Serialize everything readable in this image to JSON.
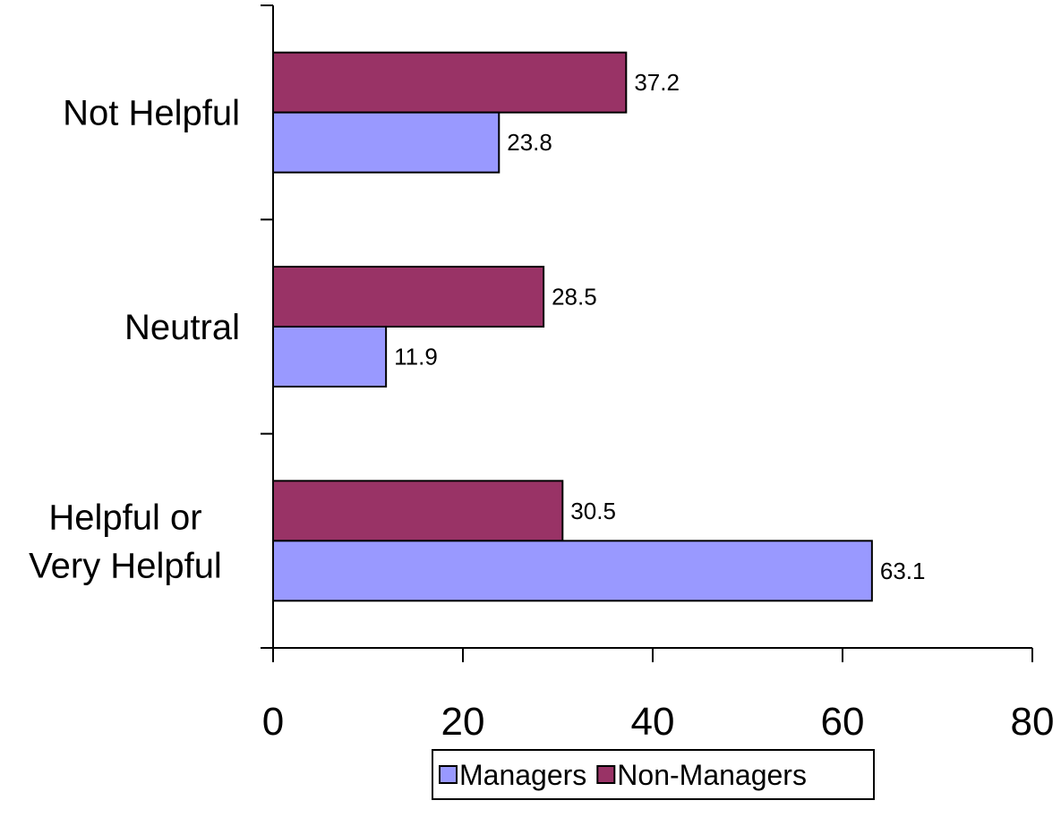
{
  "chart_data": {
    "type": "bar",
    "orientation": "horizontal",
    "categories": [
      "Not Helpful",
      "Neutral",
      "Helpful or Very Helpful"
    ],
    "category_lines": [
      [
        "Not Helpful"
      ],
      [
        "Neutral"
      ],
      [
        "Helpful or",
        "Very Helpful"
      ]
    ],
    "series": [
      {
        "name": "Managers",
        "values": [
          23.8,
          11.9,
          63.1
        ],
        "color": "#9999ff"
      },
      {
        "name": "Non-Managers",
        "values": [
          37.2,
          28.5,
          30.5
        ],
        "color": "#993366"
      }
    ],
    "x_ticks": [
      "0",
      "20",
      "40",
      "60",
      "80"
    ],
    "xlim": [
      0,
      80
    ],
    "grid": false,
    "legend_position": "bottom",
    "title": "",
    "xlabel": "",
    "ylabel": ""
  }
}
